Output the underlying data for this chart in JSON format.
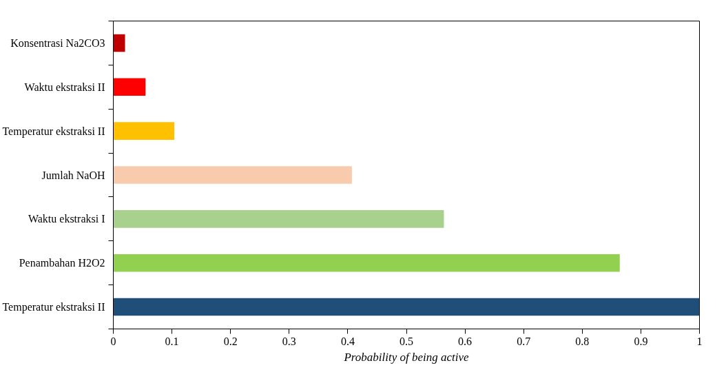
{
  "chart_data": {
    "type": "bar",
    "orientation": "horizontal",
    "categories": [
      "Konsentrasi Na2CO3",
      "Waktu ekstraksi II",
      "Temperatur ekstraksi II",
      "Jumlah NaOH",
      "Waktu ekstraksi I",
      "Penambahan H2O2",
      "Temperatur ekstraksi II"
    ],
    "values": [
      0.02,
      0.055,
      0.104,
      0.407,
      0.564,
      0.864,
      1.0
    ],
    "colors": [
      "#c00000",
      "#ff0000",
      "#ffc000",
      "#f8cbad",
      "#a9d18e",
      "#92d050",
      "#1f4e79"
    ],
    "xlabel": "Probability of being active",
    "xlim": [
      0,
      1
    ],
    "xticks": [
      0,
      0.1,
      0.2,
      0.3,
      0.4,
      0.5,
      0.6,
      0.7,
      0.8,
      0.9,
      1
    ],
    "grid": false
  }
}
